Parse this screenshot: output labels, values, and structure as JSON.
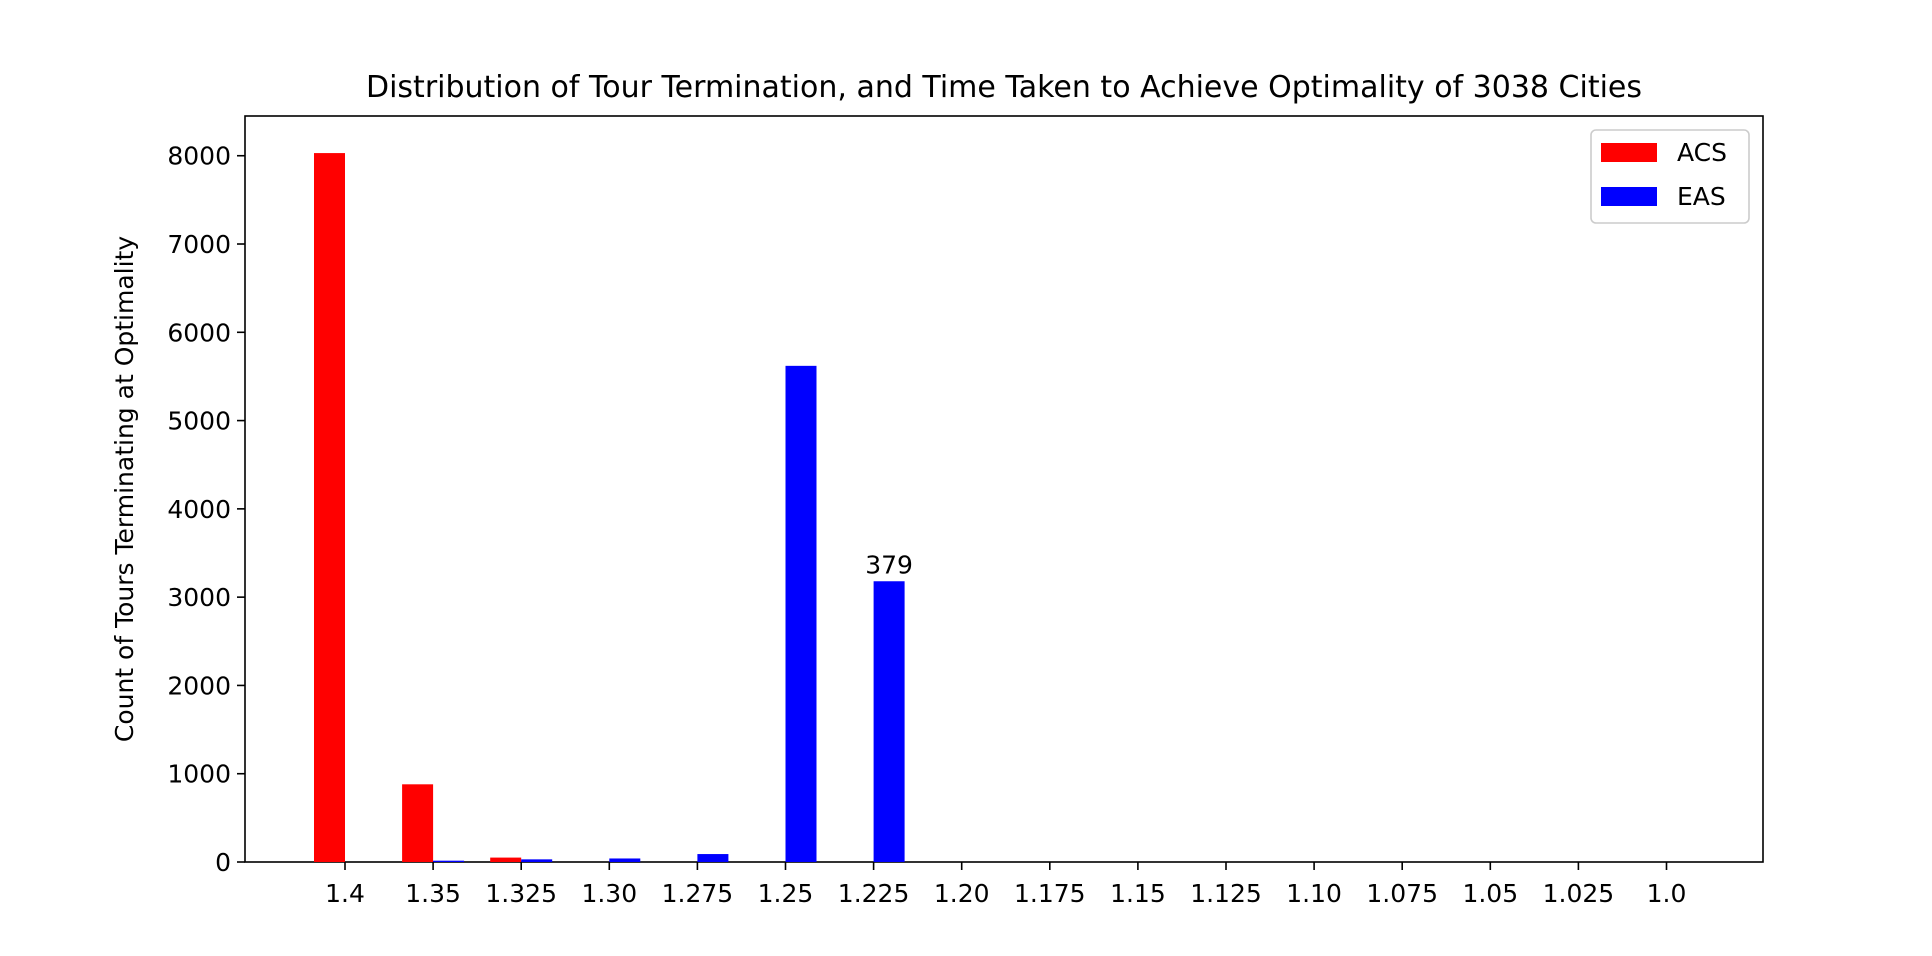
{
  "chart_data": {
    "type": "bar",
    "title": "Distribution of Tour Termination, and Time Taken to Achieve Optimality of 3038 Cities",
    "xlabel": "",
    "ylabel": "Count of Tours Terminating at Optimality",
    "ylim": [
      0,
      8450
    ],
    "yticks": [
      0,
      1000,
      2000,
      3000,
      4000,
      5000,
      6000,
      7000,
      8000
    ],
    "categories": [
      "1.4",
      "1.35",
      "1.325",
      "1.30",
      "1.275",
      "1.25",
      "1.225",
      "1.20",
      "1.175",
      "1.15",
      "1.125",
      "1.10",
      "1.075",
      "1.05",
      "1.025",
      "1.0"
    ],
    "series": [
      {
        "name": "ACS",
        "color": "#ff0000",
        "values": [
          8030,
          880,
          50,
          0,
          0,
          0,
          0,
          0,
          0,
          0,
          0,
          0,
          0,
          0,
          0,
          0
        ]
      },
      {
        "name": "EAS",
        "color": "#0000ff",
        "values": [
          0,
          15,
          30,
          40,
          90,
          5620,
          3180,
          0,
          0,
          0,
          0,
          0,
          0,
          0,
          0,
          0
        ]
      }
    ],
    "annotations": [
      {
        "text": "379",
        "series": 1,
        "category_index": 6
      }
    ],
    "legend_position": "top-right",
    "grid": false
  }
}
